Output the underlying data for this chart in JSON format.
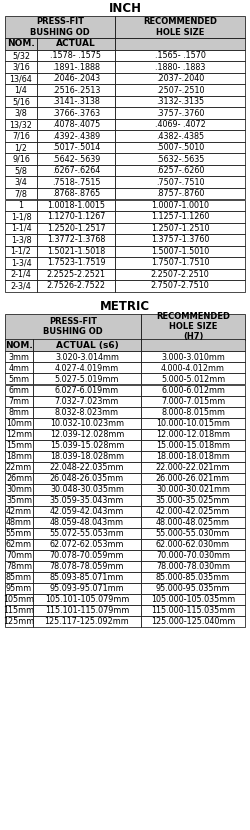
{
  "title_inch": "INCH",
  "title_metric": "METRIC",
  "inch_rows": [
    [
      "5/32",
      ".1578- .1575",
      ".1565- .1570"
    ],
    [
      "3/16",
      ".1891-.1888",
      ".1880- .1883"
    ],
    [
      "13/64",
      ".2046-.2043",
      ".2037-.2040"
    ],
    [
      "1/4",
      ".2516-.2513",
      ".2507-.2510"
    ],
    [
      "5/16",
      ".3141-.3138",
      ".3132-.3135"
    ],
    [
      "3/8",
      ".3766-.3763",
      ".3757-.3760"
    ],
    [
      "13/32",
      ".4078-.4075",
      ".4069- .4072"
    ],
    [
      "7/16",
      ".4392-.4389",
      ".4382-.4385"
    ],
    [
      "1/2",
      ".5017-.5014",
      ".5007-.5010"
    ],
    [
      "9/16",
      ".5642-.5639",
      ".5632-.5635"
    ],
    [
      "5/8",
      ".6267-.6264",
      ".6257-.6260"
    ],
    [
      "3/4",
      ".7518-.7515",
      ".7507-.7510"
    ],
    [
      "7/8",
      ".8768-.8765",
      ".8757-.8760"
    ],
    [
      "1",
      "1.0018-1.0015",
      "1.0007-1.0010"
    ],
    [
      "1-1/8",
      "1.1270-1.1267",
      "1.1257-1.1260"
    ],
    [
      "1-1/4",
      "1.2520-1.2517",
      "1.2507-1.2510"
    ],
    [
      "1-3/8",
      "1.3772-1.3768",
      "1.3757-1.3760"
    ],
    [
      "1-1/2",
      "1.5021-1.5018",
      "1.5007-1.5010"
    ],
    [
      "1-3/4",
      "1.7523-1.7519",
      "1.7507-1.7510"
    ],
    [
      "2-1/4",
      "2.2525-2.2521",
      "2.2507-2.2510"
    ],
    [
      "2-3/4",
      "2.7526-2.7522",
      "2.7507-2.7510"
    ]
  ],
  "metric_rows": [
    [
      "3mm",
      "3.020-3.014mm",
      "3.000-3.010mm"
    ],
    [
      "4mm",
      "4.027-4.019mm",
      "4.000-4.012mm"
    ],
    [
      "5mm",
      "5.027-5.019mm",
      "5.000-5.012mm"
    ],
    [
      "6mm",
      "6.027-6.019mm",
      "6.000-6.012mm"
    ],
    [
      "7mm",
      "7.032-7.023mm",
      "7.000-7.015mm"
    ],
    [
      "8mm",
      "8.032-8.023mm",
      "8.000-8.015mm"
    ],
    [
      "10mm",
      "10.032-10.023mm",
      "10.000-10.015mm"
    ],
    [
      "12mm",
      "12.039-12.028mm",
      "12.000-12.018mm"
    ],
    [
      "15mm",
      "15.039-15.028mm",
      "15.000-15.018mm"
    ],
    [
      "18mm",
      "18.039-18.028mm",
      "18.000-18.018mm"
    ],
    [
      "22mm",
      "22.048-22.035mm",
      "22.000-22.021mm"
    ],
    [
      "26mm",
      "26.048-26.035mm",
      "26.000-26.021mm"
    ],
    [
      "30mm",
      "30.048-30.035mm",
      "30.000-30.021mm"
    ],
    [
      "35mm",
      "35.059-35.043mm",
      "35.000-35.025mm"
    ],
    [
      "42mm",
      "42.059-42.043mm",
      "42.000-42.025mm"
    ],
    [
      "48mm",
      "48.059-48.043mm",
      "48.000-48.025mm"
    ],
    [
      "55mm",
      "55.072-55.053mm",
      "55.000-55.030mm"
    ],
    [
      "62mm",
      "62.072-62.053mm",
      "62.000-62.030mm"
    ],
    [
      "70mm",
      "70.078-70.059mm",
      "70.000-70.030mm"
    ],
    [
      "78mm",
      "78.078-78.059mm",
      "78.000-78.030mm"
    ],
    [
      "85mm",
      "85.093-85.071mm",
      "85.000-85.035mm"
    ],
    [
      "95mm",
      "95.093-95.071mm",
      "95.000-95.035mm"
    ],
    [
      "105mm",
      "105.101-105.079mm",
      "105.000-105.035mm"
    ],
    [
      "115mm",
      "115.101-115.079mm",
      "115.000-115.035mm"
    ],
    [
      "125mm",
      "125.117-125.092mm",
      "125.000-125.040mm"
    ]
  ],
  "header_bg": "#c8c8c8",
  "row_bg": "#ffffff",
  "text_color": "#000000",
  "title_fontsize": 8.5,
  "header_fontsize": 6.0,
  "subheader_fontsize": 6.5,
  "data_fontsize": 5.8
}
